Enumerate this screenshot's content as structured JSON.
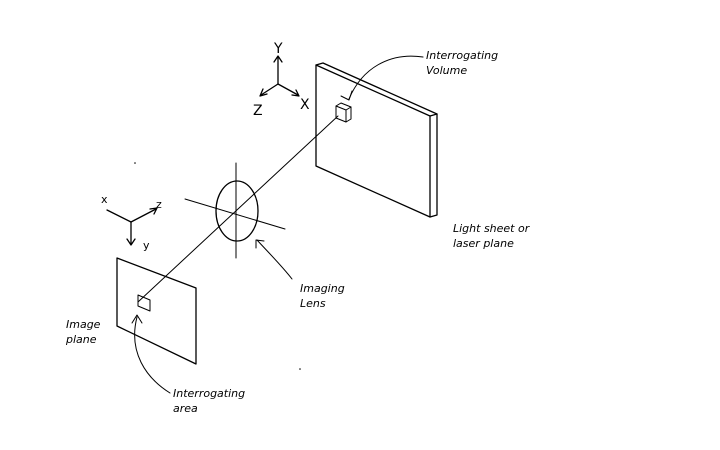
{
  "labels": {
    "interrogating_volume": [
      "Interrogating",
      "Volume"
    ],
    "light_sheet": [
      "Light sheet or",
      "laser plane"
    ],
    "imaging_lens": [
      "Imaging",
      "Lens"
    ],
    "image_plane": [
      "Image",
      "plane"
    ],
    "interrogating_area": [
      "Interrogating",
      "area"
    ]
  },
  "world_axes": {
    "y": "Y",
    "z": "Z",
    "x": "X"
  },
  "image_axes": {
    "x": "x",
    "z": "z",
    "y": "y"
  }
}
